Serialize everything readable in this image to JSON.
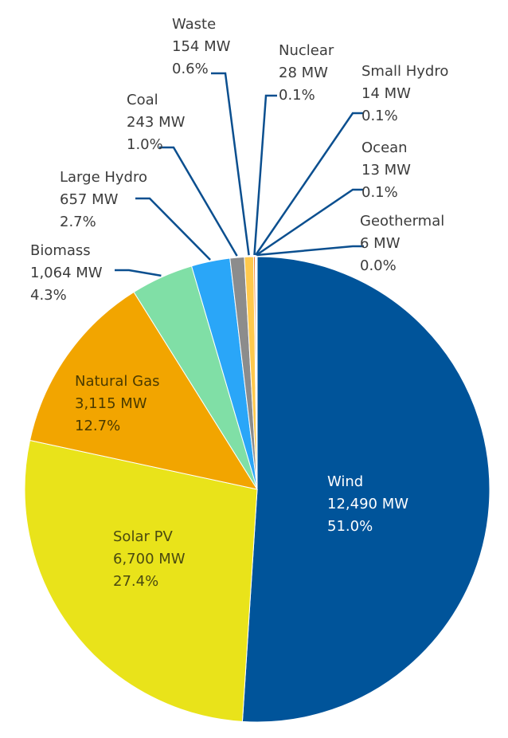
{
  "chart_data": {
    "type": "pie",
    "title": "",
    "unit": "MW",
    "slices": [
      {
        "name": "Wind",
        "value": 12490,
        "value_label": "12,490 MW",
        "percent_label": "51.0%",
        "color": "#00549a"
      },
      {
        "name": "Solar PV",
        "value": 6700,
        "value_label": "6,700 MW",
        "percent_label": "27.4%",
        "color": "#e9e31a"
      },
      {
        "name": "Natural Gas",
        "value": 3115,
        "value_label": "3,115 MW",
        "percent_label": "12.7%",
        "color": "#f2a500"
      },
      {
        "name": "Biomass",
        "value": 1064,
        "value_label": "1,064 MW",
        "percent_label": "4.3%",
        "color": "#80dfa6"
      },
      {
        "name": "Large Hydro",
        "value": 657,
        "value_label": "657 MW",
        "percent_label": "2.7%",
        "color": "#2aa6f8"
      },
      {
        "name": "Coal",
        "value": 243,
        "value_label": "243 MW",
        "percent_label": "1.0%",
        "color": "#8c8c8c"
      },
      {
        "name": "Waste",
        "value": 154,
        "value_label": "154 MW",
        "percent_label": "0.6%",
        "color": "#ffc94d"
      },
      {
        "name": "Nuclear",
        "value": 28,
        "value_label": "28 MW",
        "percent_label": "0.1%",
        "color": "#ef7d2a"
      },
      {
        "name": "Small Hydro",
        "value": 14,
        "value_label": "14 MW",
        "percent_label": "0.1%",
        "color": "#9b59b6"
      },
      {
        "name": "Ocean",
        "value": 13,
        "value_label": "13 MW",
        "percent_label": "0.1%",
        "color": "#1b6b8f"
      },
      {
        "name": "Geothermal",
        "value": 6,
        "value_label": "6 MW",
        "percent_label": "0.0%",
        "color": "#e0483e"
      }
    ]
  }
}
